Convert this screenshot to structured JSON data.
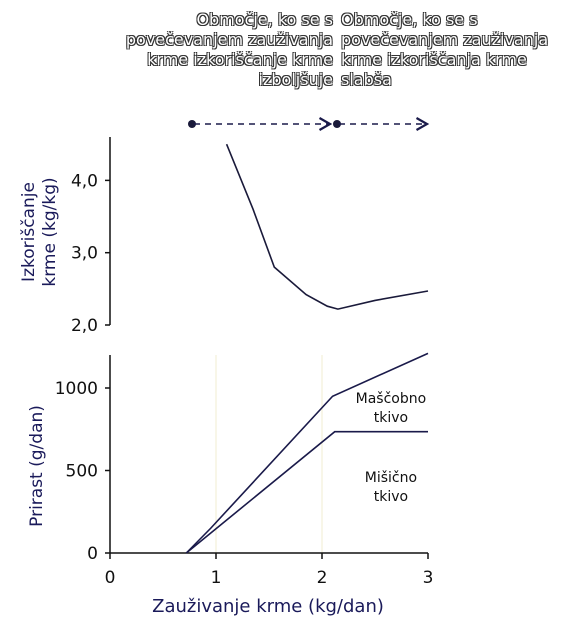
{
  "annotations": {
    "left_region": [
      "Območje, ko se s",
      "povečevanjem zauživanja",
      "krme izkoriščanje krme",
      "izboljšuje"
    ],
    "right_region": [
      "Območje, ko se s",
      "povečevanjem zauživanja",
      "krme izkoriščanja krme",
      "slabša"
    ]
  },
  "chart_data": [
    {
      "type": "line",
      "ylabel": [
        "Izkoriščanje",
        "krme (kg/kg)"
      ],
      "yticks": [
        "4,0",
        "3,0",
        "2,0"
      ],
      "ytick_values": [
        4.0,
        3.0,
        2.0
      ],
      "ylim": [
        2.0,
        4.6
      ],
      "xlim": [
        0,
        3
      ],
      "series": [
        {
          "x": [
            1.1,
            1.35,
            1.55,
            1.85,
            2.05,
            2.15,
            2.5,
            3.0
          ],
          "y": [
            4.5,
            3.6,
            2.8,
            2.42,
            2.26,
            2.22,
            2.34,
            2.47
          ],
          "color": "#1a1a3a"
        }
      ]
    },
    {
      "type": "line",
      "ylabel": "Prirast (g/dan)",
      "xlabel": "Zauživanje krme (kg/dan)",
      "yticks": [
        "1000",
        "500",
        "0"
      ],
      "ytick_values": [
        1000,
        500,
        0
      ],
      "xticks": [
        "0",
        "1",
        "2",
        "3"
      ],
      "xtick_values": [
        0,
        1,
        2,
        3
      ],
      "ylim": [
        0,
        1200
      ],
      "xlim": [
        0,
        3
      ],
      "vgrid": [
        1,
        2
      ],
      "series": [
        {
          "x": [
            0.72,
            0.95,
            2.1,
            3.0
          ],
          "y": [
            0,
            150,
            950,
            1210
          ],
          "color": "#1a1a4a"
        },
        {
          "x": [
            0.72,
            2.12,
            3.0
          ],
          "y": [
            0,
            735,
            735
          ],
          "color": "#1a1a4a"
        }
      ],
      "region_labels": [
        {
          "text": [
            "Maščobno",
            "tkivo"
          ],
          "x": 2.65,
          "y": 910
        },
        {
          "text": [
            "Mišično",
            "tkivo"
          ],
          "x": 2.65,
          "y": 430
        }
      ]
    }
  ]
}
